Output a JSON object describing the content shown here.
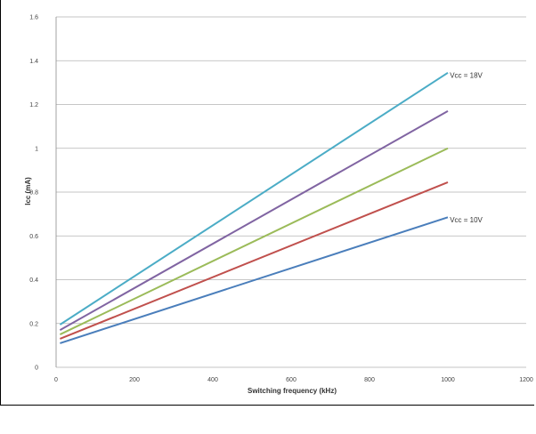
{
  "chart_data": {
    "type": "line",
    "xlabel": "Switching frequency (kHz)",
    "ylabel": "Icc (mA)",
    "xlim": [
      0,
      1200
    ],
    "ylim": [
      0,
      1.6
    ],
    "x_ticks": [
      "0",
      "200",
      "400",
      "600",
      "800",
      "1000",
      "1200"
    ],
    "y_ticks": [
      "0",
      "0.2",
      "0.4",
      "0.6",
      "0.8",
      "1",
      "1.2",
      "1.4",
      "1.6"
    ],
    "grid": "horizontal",
    "series": [
      {
        "color": "#4a7ebb",
        "x": [
          10,
          1000
        ],
        "y": [
          0.11,
          0.685
        ]
      },
      {
        "color": "#c0504d",
        "x": [
          10,
          1000
        ],
        "y": [
          0.13,
          0.845
        ]
      },
      {
        "color": "#9bbb59",
        "x": [
          10,
          1000
        ],
        "y": [
          0.15,
          1.0
        ]
      },
      {
        "color": "#8064a2",
        "x": [
          10,
          1000
        ],
        "y": [
          0.17,
          1.17
        ]
      },
      {
        "color": "#4bacc6",
        "x": [
          10,
          1000
        ],
        "y": [
          0.195,
          1.345
        ]
      }
    ],
    "annotations": [
      {
        "text": "Vcc = 18V",
        "x": 1005,
        "y": 1.335
      },
      {
        "text": "Vcc = 10V",
        "x": 1005,
        "y": 0.675
      }
    ]
  }
}
